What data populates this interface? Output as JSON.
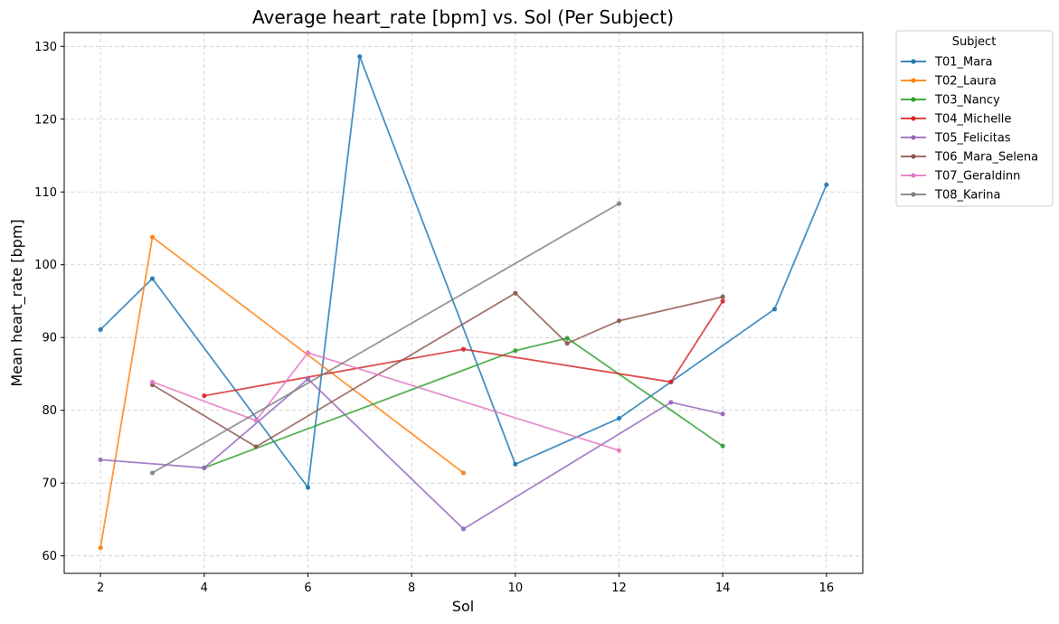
{
  "chart_data": {
    "type": "line",
    "title": "Average heart_rate [bpm] vs. Sol (Per Subject)",
    "xlabel": "Sol",
    "ylabel": "Mean heart_rate [bpm]",
    "xlim": [
      1.3,
      16.7
    ],
    "ylim": [
      57.6,
      131.9
    ],
    "xticks": [
      2,
      4,
      6,
      8,
      10,
      12,
      14,
      16
    ],
    "yticks": [
      60,
      70,
      80,
      90,
      100,
      110,
      120,
      130
    ],
    "grid": true,
    "legend": {
      "title": "Subject",
      "placement": "outside-top-right"
    },
    "series": [
      {
        "name": "T01_Mara",
        "color": "#1f77b4",
        "x": [
          2,
          3,
          6,
          7,
          10,
          12,
          13,
          15,
          16
        ],
        "y": [
          91.1,
          98.1,
          69.4,
          128.6,
          72.6,
          78.9,
          83.9,
          93.9,
          111.0
        ]
      },
      {
        "name": "T02_Laura",
        "color": "#ff7f0e",
        "x": [
          2,
          3,
          9
        ],
        "y": [
          61.1,
          103.8,
          71.4
        ]
      },
      {
        "name": "T03_Nancy",
        "color": "#2ca02c",
        "x": [
          4,
          10,
          11,
          14
        ],
        "y": [
          72.1,
          88.2,
          89.9,
          75.1
        ]
      },
      {
        "name": "T04_Michelle",
        "color": "#d62728",
        "x": [
          4,
          9,
          13,
          14
        ],
        "y": [
          82.0,
          88.4,
          83.9,
          95.0
        ]
      },
      {
        "name": "T05_Felicitas",
        "color": "#9467bd",
        "x": [
          2,
          4,
          6,
          9,
          13,
          14
        ],
        "y": [
          73.2,
          72.1,
          84.3,
          63.7,
          81.1,
          79.5
        ]
      },
      {
        "name": "T06_Mara_Selena",
        "color": "#8c564b",
        "x": [
          3,
          5,
          10,
          11,
          12,
          14
        ],
        "y": [
          83.5,
          75.0,
          96.1,
          89.2,
          92.3,
          95.6
        ]
      },
      {
        "name": "T07_Geraldinn",
        "color": "#e377c2",
        "x": [
          3,
          5,
          6,
          12
        ],
        "y": [
          83.9,
          78.6,
          87.9,
          74.5
        ]
      },
      {
        "name": "T08_Karina",
        "color": "#7f7f7f",
        "x": [
          3,
          12
        ],
        "y": [
          71.4,
          108.4
        ]
      }
    ]
  }
}
